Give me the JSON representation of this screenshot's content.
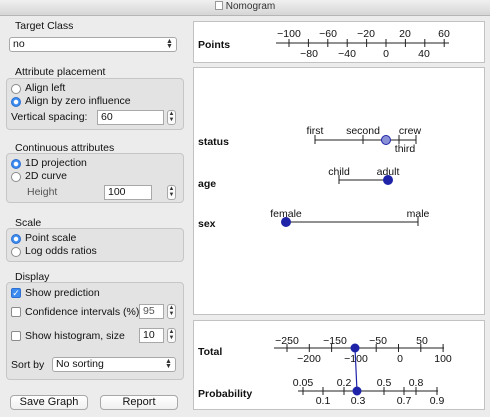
{
  "window": {
    "title": "Nomogram"
  },
  "target_class": {
    "label": "Target Class",
    "value": "no"
  },
  "attribute_placement": {
    "label": "Attribute placement",
    "options": [
      "Align left",
      "Align by zero influence"
    ],
    "selected": 1,
    "spacing_label": "Vertical spacing:",
    "spacing_value": "60"
  },
  "continuous": {
    "label": "Continuous attributes",
    "options": [
      "1D projection",
      "2D curve"
    ],
    "selected": 0,
    "height_label": "Height",
    "height_value": "100"
  },
  "scale": {
    "label": "Scale",
    "options": [
      "Point scale",
      "Log odds ratios"
    ],
    "selected": 0
  },
  "display": {
    "label": "Display",
    "show_prediction": "Show prediction",
    "show_prediction_checked": true,
    "confidence_label": "Confidence intervals (%):",
    "confidence_value": "95",
    "confidence_checked": false,
    "histogram_label": "Show histogram, size",
    "histogram_value": "10",
    "histogram_checked": false,
    "sort_label": "Sort by",
    "sort_value": "No sorting"
  },
  "buttons": {
    "save": "Save Graph",
    "report": "Report"
  },
  "points_axis": {
    "label": "Points",
    "upper": [
      "−100",
      "−60",
      "−20",
      "20",
      "60"
    ],
    "lower": [
      "−80",
      "−40",
      "0",
      "40"
    ]
  },
  "attributes": [
    {
      "name": "status",
      "labels": [
        "first",
        "second",
        "crew",
        "third"
      ]
    },
    {
      "name": "age",
      "labels": [
        "child",
        "adult"
      ]
    },
    {
      "name": "sex",
      "labels": [
        "female",
        "male"
      ]
    }
  ],
  "total_axis": {
    "label": "Total",
    "upper": [
      "−250",
      "−150",
      "−50",
      "50"
    ],
    "lower": [
      "−200",
      "−100",
      "0",
      "100"
    ]
  },
  "probability_axis": {
    "label": "Probability",
    "upper": [
      "0.05",
      "0.2",
      "0.5",
      "0.8"
    ],
    "lower": [
      "0.1",
      "0.3",
      "0.7",
      "0.9"
    ]
  },
  "colors": {
    "marker": "#1e23a8",
    "accent": "#3c8cf0"
  }
}
